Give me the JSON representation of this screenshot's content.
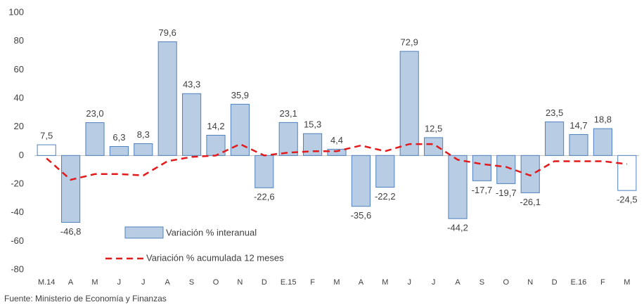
{
  "chart_data": {
    "type": "bar",
    "categories": [
      "M.14",
      "A",
      "M",
      "J",
      "J",
      "A",
      "S",
      "O",
      "N",
      "D",
      "E.15",
      "F",
      "M",
      "A",
      "M",
      "J",
      "J",
      "A",
      "S",
      "O",
      "N",
      "D",
      "E.16",
      "F",
      "M"
    ],
    "series": [
      {
        "name": "Variación % interanual",
        "type": "bar",
        "color": "#b8cce4",
        "edge_color": "#4f81bd",
        "colors": [
          "#ffffff",
          "#b8cce4",
          "#b8cce4",
          "#b8cce4",
          "#b8cce4",
          "#b8cce4",
          "#b8cce4",
          "#b8cce4",
          "#b8cce4",
          "#b8cce4",
          "#b8cce4",
          "#b8cce4",
          "#b8cce4",
          "#b8cce4",
          "#b8cce4",
          "#b8cce4",
          "#b8cce4",
          "#b8cce4",
          "#b8cce4",
          "#b8cce4",
          "#b8cce4",
          "#b8cce4",
          "#b8cce4",
          "#b8cce4",
          "#ffffff"
        ],
        "values": [
          7.5,
          -46.8,
          23.0,
          6.3,
          8.3,
          79.6,
          43.3,
          14.2,
          35.9,
          -22.6,
          23.1,
          15.3,
          4.4,
          -35.6,
          -22.2,
          72.9,
          12.5,
          -44.2,
          -17.7,
          -19.7,
          -26.1,
          23.5,
          14.7,
          18.8,
          -24.5
        ],
        "value_labels": [
          "7,5",
          "-46,8",
          "23,0",
          "6,3",
          "8,3",
          "79,6",
          "43,3",
          "14,2",
          "35,9",
          "-22,6",
          "23,1",
          "15,3",
          "4,4",
          "-35,6",
          "-22,2",
          "72,9",
          "12,5",
          "-44,2",
          "-17,7",
          "-19,7",
          "-26,1",
          "23,5",
          "14,7",
          "18,8",
          "-24,5"
        ]
      },
      {
        "name": "Variación % acumulada 12 meses",
        "type": "line",
        "color": "#e31a1c",
        "values": [
          -2,
          -17,
          -13,
          -13,
          -14,
          -4,
          -1,
          0,
          8,
          0,
          2,
          3,
          3,
          7,
          3,
          8,
          8,
          -3,
          -6,
          -8,
          -14,
          -4,
          -4,
          -4,
          -6
        ]
      }
    ],
    "ylim": [
      -80,
      100
    ],
    "yticks": [
      -80,
      -60,
      -40,
      -20,
      0,
      20,
      40,
      60,
      80,
      100
    ],
    "grid": false,
    "source": "Fuente: Ministerio de Economía y Finanzas"
  }
}
